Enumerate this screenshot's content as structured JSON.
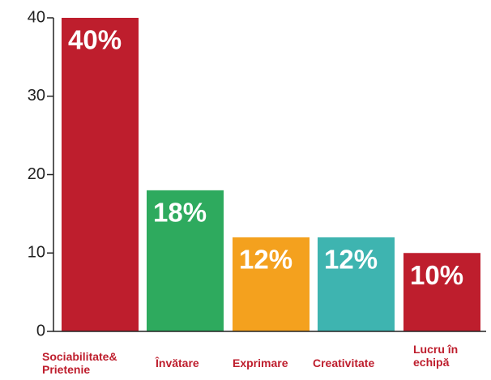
{
  "chart_data": {
    "type": "bar",
    "categories": [
      "Sociabilitate& Prietenie",
      "Învătare",
      "Exprimare",
      "Creativitate",
      "Lucru în echipă"
    ],
    "values": [
      40,
      18,
      12,
      12,
      10
    ],
    "value_labels": [
      "40%",
      "18%",
      "12%",
      "12%",
      "10%"
    ],
    "colors": [
      "#be1e2d",
      "#2eaa5e",
      "#f4a11e",
      "#3eb4b0",
      "#be1e2d"
    ],
    "ylim": [
      0,
      40
    ],
    "yticks": [
      0,
      10,
      20,
      30,
      40
    ]
  }
}
